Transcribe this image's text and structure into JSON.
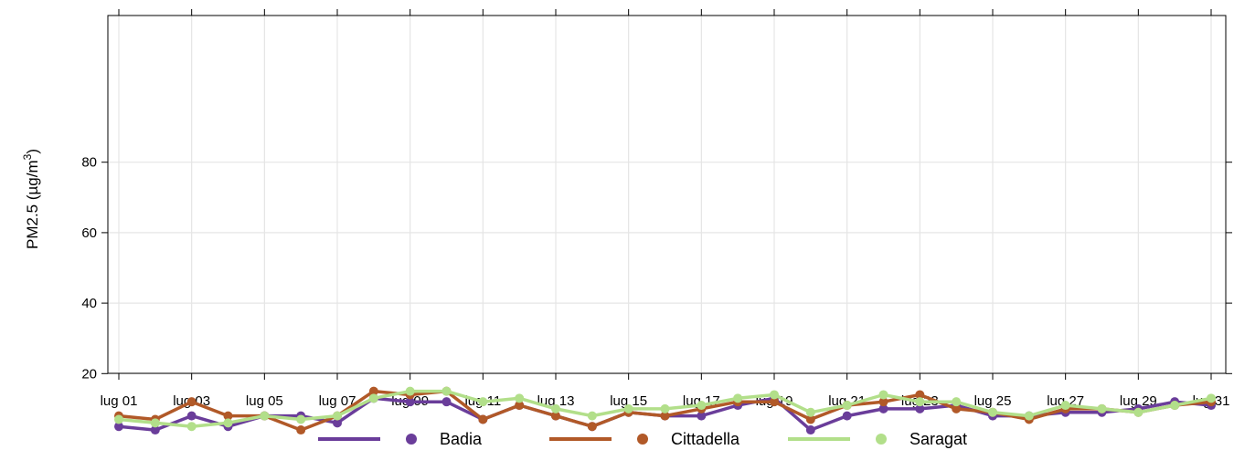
{
  "chart_data": {
    "type": "line",
    "ylabel_main": "PM2.5 (µg/m",
    "ylabel_sup": "3",
    "ylabel_close": ")",
    "xlabel": "",
    "ylim": [
      0,
      100
    ],
    "yticks": [
      20,
      40,
      60,
      80
    ],
    "grid": true,
    "legend_position": "bottom",
    "x": [
      1,
      2,
      3,
      4,
      5,
      6,
      7,
      8,
      9,
      10,
      11,
      12,
      13,
      14,
      15,
      16,
      17,
      18,
      19,
      20,
      21,
      22,
      23,
      24,
      25,
      26,
      27,
      28,
      29,
      30,
      31
    ],
    "xtick_values": [
      1,
      3,
      5,
      7,
      9,
      11,
      13,
      15,
      17,
      19,
      21,
      23,
      25,
      27,
      29,
      31
    ],
    "xtick_labels": [
      "lug 01",
      "lug 03",
      "lug 05",
      "lug 07",
      "lug 09",
      "lug 11",
      "lug 13",
      "lug 15",
      "lug 17",
      "lug 19",
      "lug 21",
      "lug 23",
      "lug 25",
      "lug 27",
      "lug 29",
      "lug 31"
    ],
    "series": [
      {
        "name": "Badia",
        "color": "#6a3d9a",
        "values": [
          5,
          4,
          8,
          5,
          8,
          8,
          6,
          13,
          12,
          12,
          7,
          11,
          8,
          5,
          9,
          8,
          8,
          11,
          13,
          4,
          8,
          10,
          10,
          11,
          8,
          8,
          9,
          9,
          10,
          12,
          11
        ]
      },
      {
        "name": "Cittadella",
        "color": "#b15928",
        "values": [
          8,
          7,
          12,
          8,
          8,
          4,
          8,
          15,
          14,
          15,
          7,
          11,
          8,
          5,
          9,
          8,
          10,
          12,
          12,
          7,
          11,
          12,
          14,
          10,
          9,
          7,
          10,
          10,
          9,
          11,
          12
        ]
      },
      {
        "name": "Saragat",
        "color": "#b2df8a",
        "values": [
          7,
          6,
          5,
          6,
          8,
          7,
          8,
          13,
          15,
          15,
          12,
          13,
          10,
          8,
          10,
          10,
          11,
          13,
          14,
          9,
          11,
          14,
          12,
          12,
          9,
          8,
          11,
          10,
          9,
          11,
          13
        ]
      }
    ]
  }
}
